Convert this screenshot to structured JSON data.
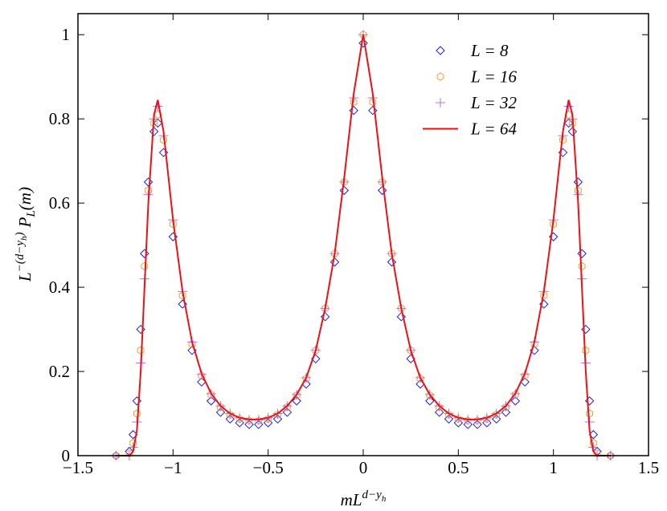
{
  "chart_data": {
    "type": "scatter",
    "xlabel": [
      "mL",
      "d−y",
      "h"
    ],
    "ylabel": [
      "L",
      "−(d−y",
      "h",
      ")",
      "P",
      "L",
      "(m)"
    ],
    "x": [
      -1.3,
      -1.23,
      -1.21,
      -1.19,
      -1.17,
      -1.15,
      -1.13,
      -1.1,
      -1.08,
      -1.05,
      -1.0,
      -0.95,
      -0.9,
      -0.85,
      -0.8,
      -0.75,
      -0.7,
      -0.65,
      -0.6,
      -0.55,
      -0.5,
      -0.45,
      -0.4,
      -0.35,
      -0.3,
      -0.25,
      -0.2,
      -0.15,
      -0.1,
      -0.05,
      0,
      0.05,
      0.1,
      0.15,
      0.2,
      0.25,
      0.3,
      0.35,
      0.4,
      0.45,
      0.5,
      0.55,
      0.6,
      0.65,
      0.7,
      0.75,
      0.8,
      0.85,
      0.9,
      0.95,
      1.0,
      1.05,
      1.08,
      1.1,
      1.13,
      1.15,
      1.17,
      1.19,
      1.21,
      1.23,
      1.3
    ],
    "series": [
      {
        "name": "L = 8",
        "color": "#1f1fe0",
        "marker": "diamond",
        "values": [
          0,
          0.01,
          0.05,
          0.13,
          0.3,
          0.48,
          0.65,
          0.77,
          0.79,
          0.72,
          0.52,
          0.36,
          0.25,
          0.175,
          0.13,
          0.103,
          0.087,
          0.078,
          0.074,
          0.074,
          0.078,
          0.087,
          0.103,
          0.13,
          0.17,
          0.23,
          0.33,
          0.46,
          0.63,
          0.82,
          0.98,
          0.82,
          0.63,
          0.46,
          0.33,
          0.23,
          0.17,
          0.13,
          0.103,
          0.087,
          0.078,
          0.074,
          0.074,
          0.078,
          0.087,
          0.103,
          0.13,
          0.175,
          0.25,
          0.36,
          0.52,
          0.72,
          0.79,
          0.77,
          0.65,
          0.48,
          0.3,
          0.13,
          0.05,
          0.01,
          0
        ]
      },
      {
        "name": "L = 16",
        "color": "#f0a030",
        "marker": "hexagon",
        "values": [
          0,
          0.005,
          0.03,
          0.1,
          0.25,
          0.45,
          0.63,
          0.79,
          0.81,
          0.75,
          0.55,
          0.38,
          0.265,
          0.19,
          0.145,
          0.115,
          0.097,
          0.087,
          0.083,
          0.083,
          0.087,
          0.097,
          0.115,
          0.143,
          0.183,
          0.25,
          0.35,
          0.48,
          0.65,
          0.84,
          1.0,
          0.84,
          0.65,
          0.48,
          0.35,
          0.25,
          0.183,
          0.143,
          0.115,
          0.097,
          0.087,
          0.083,
          0.083,
          0.087,
          0.097,
          0.115,
          0.145,
          0.19,
          0.265,
          0.38,
          0.55,
          0.75,
          0.81,
          0.79,
          0.63,
          0.45,
          0.25,
          0.1,
          0.03,
          0.005,
          0
        ]
      },
      {
        "name": "L = 32",
        "color": "#b070f0",
        "marker": "plus",
        "values": [
          0,
          0,
          0.02,
          0.08,
          0.22,
          0.42,
          0.62,
          0.8,
          0.83,
          0.76,
          0.56,
          0.39,
          0.27,
          0.193,
          0.147,
          0.118,
          0.1,
          0.09,
          0.085,
          0.085,
          0.09,
          0.1,
          0.118,
          0.145,
          0.185,
          0.25,
          0.35,
          0.48,
          0.65,
          0.85,
          1.0,
          0.85,
          0.65,
          0.48,
          0.35,
          0.25,
          0.185,
          0.145,
          0.118,
          0.1,
          0.09,
          0.085,
          0.085,
          0.09,
          0.1,
          0.118,
          0.147,
          0.193,
          0.27,
          0.39,
          0.56,
          0.76,
          0.83,
          0.8,
          0.62,
          0.42,
          0.22,
          0.08,
          0.02,
          0,
          0
        ]
      },
      {
        "name": "L = 64",
        "color": "#ee1111",
        "marker": "line",
        "values": [
          0,
          0,
          0.01,
          0.06,
          0.2,
          0.4,
          0.6,
          0.81,
          0.845,
          0.77,
          0.56,
          0.39,
          0.27,
          0.195,
          0.148,
          0.118,
          0.1,
          0.09,
          0.086,
          0.086,
          0.09,
          0.1,
          0.118,
          0.145,
          0.185,
          0.25,
          0.35,
          0.48,
          0.66,
          0.86,
          1.0,
          0.86,
          0.66,
          0.48,
          0.35,
          0.25,
          0.185,
          0.145,
          0.118,
          0.1,
          0.09,
          0.086,
          0.086,
          0.09,
          0.1,
          0.118,
          0.148,
          0.195,
          0.27,
          0.39,
          0.56,
          0.77,
          0.845,
          0.81,
          0.6,
          0.4,
          0.2,
          0.06,
          0.01,
          0,
          0
        ]
      }
    ],
    "xlim": [
      -1.5,
      1.5
    ],
    "xticks": [
      {
        "value": -1.5,
        "label": "−1.5"
      },
      {
        "value": -1,
        "label": "−1"
      },
      {
        "value": -0.5,
        "label": "−0.5"
      },
      0,
      0.5,
      1,
      1.5
    ],
    "ylim": [
      0,
      1.05
    ],
    "yticks": [
      0,
      0.2,
      0.4,
      0.6,
      0.8,
      1
    ],
    "legend": "upper-right"
  }
}
